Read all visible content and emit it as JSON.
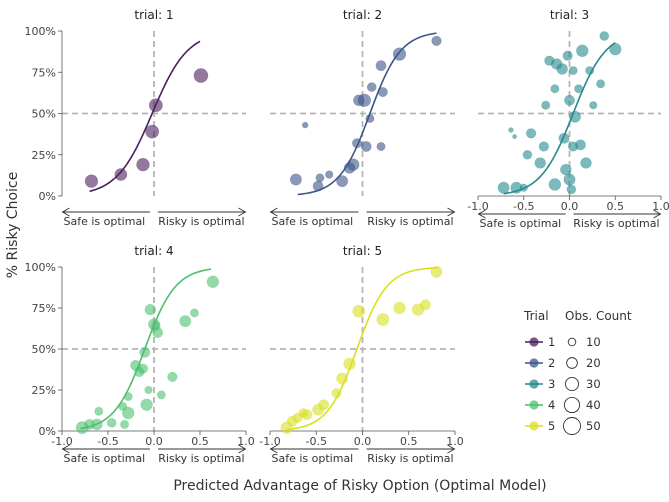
{
  "chart_data": {
    "type": "scatter",
    "xlabel": "Predicted Advantage of Risky Option (Optimal Model)",
    "ylabel": "% Risky Choice",
    "y_ticks": [
      "0%",
      "25%",
      "50%",
      "75%",
      "100%"
    ],
    "x_ticks": [
      "-1.0",
      "-0.5",
      "0.0",
      "0.5",
      "1.0"
    ],
    "arrow_labels": {
      "left": "Safe is optimal",
      "right": "Risky is optimal"
    },
    "xlim": [
      -1,
      1
    ],
    "ylim": [
      0,
      1
    ],
    "reference_lines": {
      "x": 0,
      "y": 0.5
    },
    "legend": {
      "placement": "right",
      "trial_title": "Trial",
      "size_title": "Obs. Count",
      "trials": [
        "1",
        "2",
        "3",
        "4",
        "5"
      ],
      "sizes": [
        "10",
        "20",
        "30",
        "40",
        "50"
      ]
    },
    "panels": [
      {
        "strip": "trial: 1",
        "trial": "1",
        "color": "#4b1f5e",
        "curve": {
          "k": 5.2,
          "x0": -0.02,
          "from": -0.7,
          "to": 0.5
        },
        "points": [
          [
            -0.68,
            0.09,
            28
          ],
          [
            -0.36,
            0.13,
            25
          ],
          [
            -0.12,
            0.19,
            28
          ],
          [
            -0.02,
            0.39,
            30
          ],
          [
            0.02,
            0.55,
            30
          ],
          [
            0.51,
            0.73,
            34
          ]
        ]
      },
      {
        "strip": "trial: 2",
        "trial": "2",
        "color": "#3d5588",
        "curve": {
          "k": 6.0,
          "x0": 0.08,
          "from": -0.7,
          "to": 0.8
        },
        "points": [
          [
            -0.72,
            0.1,
            22
          ],
          [
            -0.62,
            0.43,
            6
          ],
          [
            -0.48,
            0.06,
            18
          ],
          [
            -0.46,
            0.11,
            12
          ],
          [
            -0.36,
            0.13,
            10
          ],
          [
            -0.22,
            0.09,
            22
          ],
          [
            -0.14,
            0.17,
            20
          ],
          [
            -0.1,
            0.19,
            24
          ],
          [
            -0.06,
            0.32,
            15
          ],
          [
            -0.04,
            0.58,
            20
          ],
          [
            0.02,
            0.58,
            28
          ],
          [
            0.04,
            0.3,
            18
          ],
          [
            0.08,
            0.47,
            12
          ],
          [
            0.1,
            0.66,
            14
          ],
          [
            0.2,
            0.3,
            12
          ],
          [
            0.22,
            0.63,
            15
          ],
          [
            0.2,
            0.79,
            18
          ],
          [
            0.4,
            0.86,
            28
          ],
          [
            0.8,
            0.94,
            16
          ]
        ]
      },
      {
        "strip": "trial: 3",
        "trial": "3",
        "color": "#248a8e",
        "curve": {
          "k": 5.6,
          "x0": 0.04,
          "from": -0.72,
          "to": 0.5
        },
        "points": [
          [
            -0.72,
            0.05,
            22
          ],
          [
            -0.64,
            0.4,
            4
          ],
          [
            -0.6,
            0.36,
            3
          ],
          [
            -0.58,
            0.05,
            22
          ],
          [
            -0.5,
            0.05,
            10
          ],
          [
            -0.46,
            0.25,
            14
          ],
          [
            -0.42,
            0.38,
            16
          ],
          [
            -0.32,
            0.2,
            20
          ],
          [
            -0.28,
            0.3,
            16
          ],
          [
            -0.26,
            0.55,
            12
          ],
          [
            -0.22,
            0.82,
            16
          ],
          [
            -0.16,
            0.65,
            12
          ],
          [
            -0.16,
            0.07,
            24
          ],
          [
            -0.14,
            0.8,
            20
          ],
          [
            -0.08,
            0.77,
            20
          ],
          [
            -0.06,
            0.35,
            18
          ],
          [
            -0.04,
            0.16,
            20
          ],
          [
            -0.02,
            0.85,
            16
          ],
          [
            0,
            0.58,
            18
          ],
          [
            0,
            0.1,
            22
          ],
          [
            0.02,
            0.04,
            14
          ],
          [
            0.04,
            0.3,
            16
          ],
          [
            0.04,
            0.76,
            12
          ],
          [
            0.06,
            0.48,
            22
          ],
          [
            0.1,
            0.65,
            12
          ],
          [
            0.12,
            0.31,
            18
          ],
          [
            0.14,
            0.88,
            24
          ],
          [
            0.18,
            0.2,
            20
          ],
          [
            0.22,
            0.76,
            12
          ],
          [
            0.26,
            0.55,
            10
          ],
          [
            0.34,
            0.68,
            12
          ],
          [
            0.38,
            0.97,
            14
          ],
          [
            0.5,
            0.89,
            24
          ]
        ]
      },
      {
        "strip": "trial: 4",
        "trial": "4",
        "color": "#4dbf6f",
        "curve": {
          "k": 6.0,
          "x0": -0.1,
          "from": -0.8,
          "to": 0.62
        },
        "points": [
          [
            -0.78,
            0.02,
            26
          ],
          [
            -0.7,
            0.04,
            18
          ],
          [
            -0.62,
            0.04,
            20
          ],
          [
            -0.6,
            0.12,
            12
          ],
          [
            -0.46,
            0.05,
            14
          ],
          [
            -0.34,
            0.15,
            12
          ],
          [
            -0.32,
            0.04,
            12
          ],
          [
            -0.28,
            0.21,
            12
          ],
          [
            -0.28,
            0.11,
            24
          ],
          [
            -0.2,
            0.4,
            18
          ],
          [
            -0.16,
            0.36,
            16
          ],
          [
            -0.12,
            0.38,
            16
          ],
          [
            -0.1,
            0.48,
            18
          ],
          [
            -0.08,
            0.16,
            24
          ],
          [
            -0.06,
            0.25,
            10
          ],
          [
            -0.04,
            0.74,
            20
          ],
          [
            0,
            0.65,
            22
          ],
          [
            0.02,
            0.64,
            14
          ],
          [
            0.04,
            0.6,
            18
          ],
          [
            0.08,
            0.22,
            12
          ],
          [
            0.2,
            0.33,
            16
          ],
          [
            0.34,
            0.67,
            22
          ],
          [
            0.44,
            0.72,
            12
          ],
          [
            0.64,
            0.91,
            24
          ]
        ]
      },
      {
        "strip": "trial: 5",
        "trial": "5",
        "color": "#d9e021",
        "curve": {
          "k": 6.2,
          "x0": -0.06,
          "from": -0.82,
          "to": 0.82
        },
        "points": [
          [
            -0.82,
            0.02,
            24
          ],
          [
            -0.76,
            0.06,
            18
          ],
          [
            -0.7,
            0.08,
            16
          ],
          [
            -0.64,
            0.11,
            14
          ],
          [
            -0.6,
            0.1,
            18
          ],
          [
            -0.48,
            0.13,
            22
          ],
          [
            -0.42,
            0.16,
            18
          ],
          [
            -0.28,
            0.23,
            16
          ],
          [
            -0.22,
            0.32,
            22
          ],
          [
            -0.14,
            0.41,
            24
          ],
          [
            -0.04,
            0.73,
            26
          ],
          [
            0.22,
            0.68,
            26
          ],
          [
            0.4,
            0.75,
            24
          ],
          [
            0.6,
            0.74,
            24
          ],
          [
            0.68,
            0.77,
            18
          ],
          [
            0.8,
            0.97,
            22
          ]
        ]
      }
    ]
  }
}
